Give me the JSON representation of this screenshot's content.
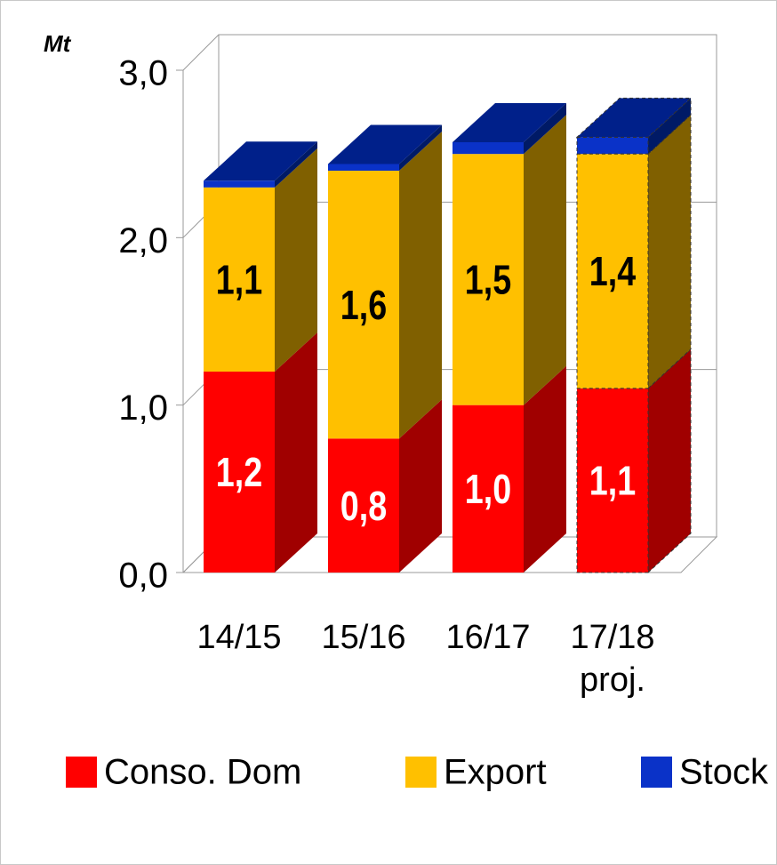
{
  "chart_data": {
    "type": "bar3d_stacked",
    "unit_label": "Mt",
    "categories": [
      "14/15",
      "15/16",
      "16/17",
      "17/18\nproj."
    ],
    "series": [
      {
        "name": "Conso. Dom",
        "color": "#ff0000",
        "side_color": "#a00000",
        "label_color": "#ffffff",
        "values": [
          1.2,
          0.8,
          1.0,
          1.1
        ],
        "value_labels": [
          "1,2",
          "0,8",
          "1,0",
          "1,1"
        ]
      },
      {
        "name": "Export",
        "color": "#ffc000",
        "side_color": "#806000",
        "label_color": "#000000",
        "values": [
          1.1,
          1.6,
          1.5,
          1.4
        ],
        "value_labels": [
          "1,1",
          "1,6",
          "1,5",
          "1,4"
        ]
      },
      {
        "name": "Stock",
        "color": "#0a32c8",
        "side_color": "#001a66",
        "top_color": "#00208a",
        "values": [
          0.04,
          0.04,
          0.07,
          0.1
        ]
      }
    ],
    "outline_dashed": [
      false,
      false,
      false,
      true
    ],
    "ylim": [
      0,
      3
    ],
    "yticks": [
      {
        "value": 0,
        "label": "0,0"
      },
      {
        "value": 1,
        "label": "1,0"
      },
      {
        "value": 2,
        "label": "2,0"
      },
      {
        "value": 3,
        "label": "3,0"
      }
    ],
    "grid": true,
    "legend": "bottom"
  }
}
